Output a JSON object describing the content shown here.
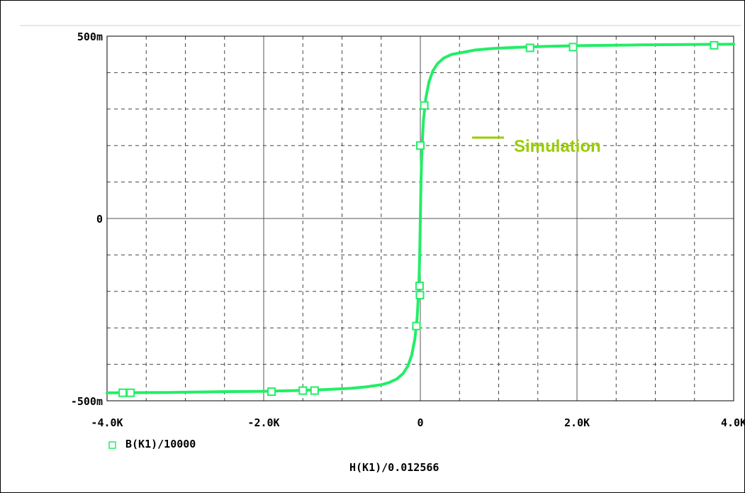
{
  "chart_data": {
    "type": "line",
    "xlabel": "H(K1)/0.012566",
    "ylabel": "",
    "xlim": [
      -4000,
      4000
    ],
    "ylim": [
      -0.5,
      0.5
    ],
    "x_ticks": [
      -4000,
      -2000,
      0,
      2000,
      4000
    ],
    "x_tick_labels": [
      "-4.0K",
      "-2.0K",
      "0",
      "2.0K",
      "4.0K"
    ],
    "y_ticks": [
      -0.5,
      0,
      0.5
    ],
    "y_tick_labels": [
      "-500m",
      "0",
      "500m"
    ],
    "grid": true,
    "series": [
      {
        "name": "B(K1)/10000",
        "color": "#22ee66",
        "marker": "square",
        "x": [
          -4000,
          -3200,
          -2500,
          -2000,
          -1600,
          -1200,
          -900,
          -700,
          -500,
          -400,
          -300,
          -220,
          -160,
          -110,
          -70,
          -40,
          -20,
          -8,
          0,
          8,
          20,
          40,
          70,
          110,
          160,
          220,
          300,
          400,
          550,
          700,
          900,
          1200,
          1600,
          2000,
          2800,
          3400,
          4000
        ],
        "y": [
          -0.478,
          -0.477,
          -0.475,
          -0.474,
          -0.472,
          -0.469,
          -0.466,
          -0.462,
          -0.456,
          -0.45,
          -0.44,
          -0.425,
          -0.405,
          -0.375,
          -0.33,
          -0.27,
          -0.19,
          -0.1,
          0,
          0.1,
          0.19,
          0.27,
          0.33,
          0.375,
          0.405,
          0.425,
          0.44,
          0.45,
          0.456,
          0.462,
          0.466,
          0.469,
          0.472,
          0.474,
          0.476,
          0.477,
          0.478
        ]
      }
    ],
    "markers": {
      "x": [
        -3800,
        -3700,
        -1900,
        -1500,
        -1350,
        -50,
        -10,
        -5,
        0,
        50,
        1400,
        1950,
        3750
      ],
      "y": [
        -0.478,
        -0.478,
        -0.475,
        -0.472,
        -0.472,
        -0.295,
        -0.185,
        -0.21,
        0.2,
        0.31,
        0.468,
        0.47,
        0.475
      ]
    },
    "annotation": {
      "text": "Simulation",
      "color": "#99cc00"
    }
  }
}
